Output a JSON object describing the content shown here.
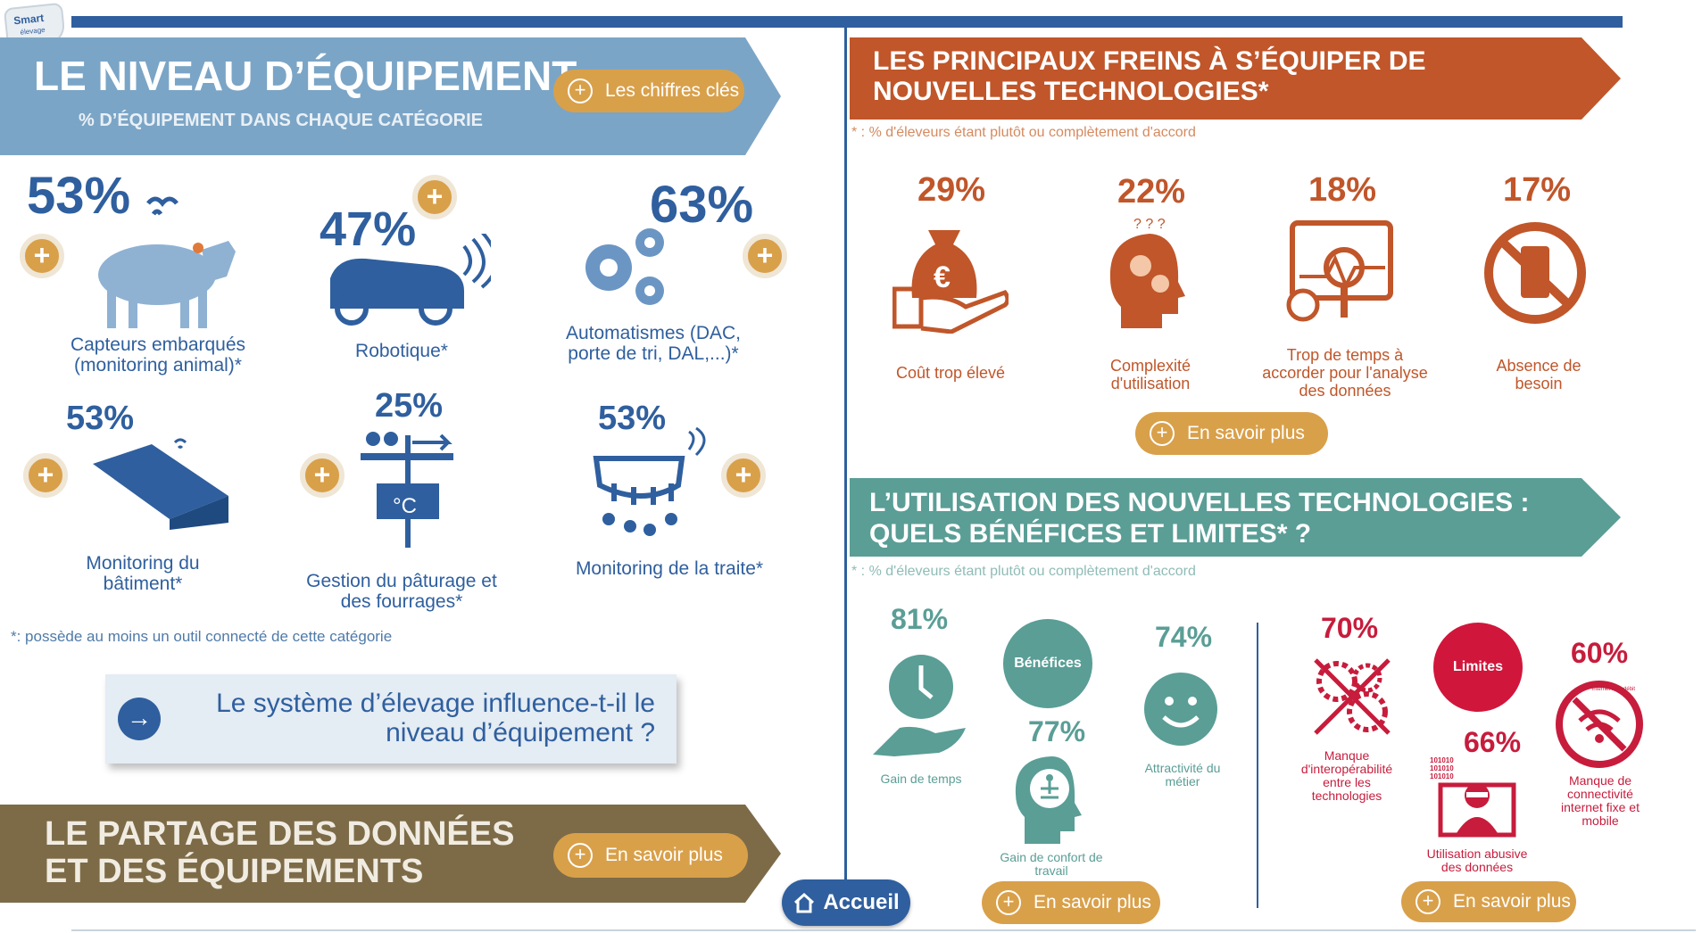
{
  "logo": {
    "brand": "Smart",
    "sub": "élevage"
  },
  "left": {
    "title": "LE NIVEAU D’ÉQUIPEMENT",
    "subtitle": "% D’ÉQUIPEMENT DANS CHAQUE CATÉGORIE",
    "key_button": "Les chiffres clés",
    "items": [
      {
        "pct": "53%",
        "label": "Capteurs embarqués (monitoring animal)*"
      },
      {
        "pct": "47%",
        "label": "Robotique*"
      },
      {
        "pct": "63%",
        "label": "Automatismes (DAC, porte de tri, DAL,...)*"
      },
      {
        "pct": "53%",
        "label": "Monitoring du bâtiment*"
      },
      {
        "pct": "25%",
        "label": "Gestion du pâturage et des fourrages*"
      },
      {
        "pct": "53%",
        "label": "Monitoring de la traite*"
      }
    ],
    "thermo": "°C",
    "footnote": "*: possède au moins un outil connecté de cette catégorie",
    "question": "Le système d’élevage influence-t-il le niveau d’équipement ?",
    "share_title": "LE PARTAGE DES DONNÉES ET DES ÉQUIPEMENTS",
    "share_button": "En savoir plus"
  },
  "freins": {
    "title": "LES PRINCIPAUX FREINS À S’ÉQUIPER DE NOUVELLES TECHNOLOGIES*",
    "note": "* : % d'éleveurs étant plutôt ou complètement d'accord",
    "items": [
      {
        "pct": "29%",
        "label": "Coût trop élevé"
      },
      {
        "pct": "22%",
        "label": "Complexité d'utilisation"
      },
      {
        "pct": "18%",
        "label": "Trop de temps à accorder pour l'analyse des données"
      },
      {
        "pct": "17%",
        "label": "Absence de besoin"
      }
    ],
    "button": "En savoir plus"
  },
  "usage": {
    "title": "L’UTILISATION DES NOUVELLES TECHNOLOGIES : QUELS BÉNÉFICES ET LIMITES* ?",
    "note": "* : % d'éleveurs étant plutôt ou complètement d'accord",
    "benefits_label": "Bénéfices",
    "benefits": [
      {
        "pct": "81%",
        "label": "Gain de temps"
      },
      {
        "pct": "77%",
        "label": "Gain de confort de travail"
      },
      {
        "pct": "74%",
        "label": "Attractivité du métier"
      }
    ],
    "limits_label": "Limites",
    "limits": [
      {
        "pct": "70%",
        "label": "Manque d'interopérabilité entre les technologies"
      },
      {
        "pct": "66%",
        "label": "Utilisation abusive des données"
      },
      {
        "pct": "60%",
        "label": "Manque de connectivité internet fixe et mobile"
      }
    ],
    "binary": "101010",
    "internet_ring": "internet haut débit",
    "button_left": "En savoir plus",
    "button_right": "En savoir plus"
  },
  "home_button": "Accueil",
  "colors": {
    "blue": "#2f5f9e",
    "banner_blue": "#7ba5c6",
    "orange": "#c0562a",
    "teal": "#5a9e96",
    "red": "#c71c3c",
    "gold": "#d9a04a",
    "brown": "#7d6b48"
  }
}
